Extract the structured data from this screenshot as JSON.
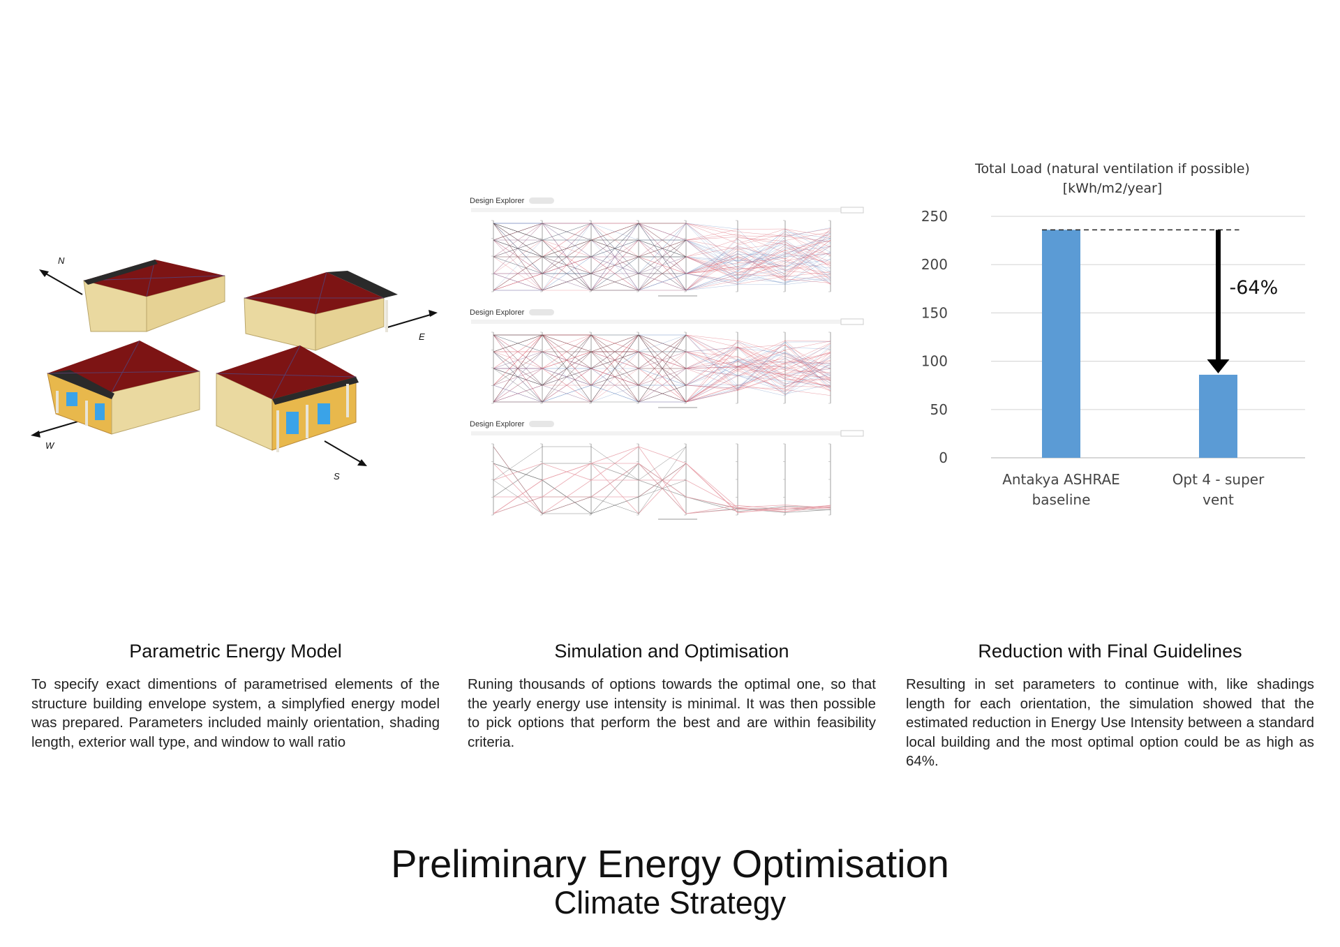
{
  "compass": {
    "north": "N",
    "east": "E",
    "west": "W",
    "south": "S"
  },
  "explorer": {
    "title": "Design Explorer"
  },
  "chart_data": {
    "type": "bar",
    "title": "Total Load (natural ventilation if possible)",
    "subtitle": "[kWh/m2/year]",
    "categories": [
      "Antakya ASHRAE baseline",
      "Opt 4 - super vent"
    ],
    "category_lines": [
      [
        "Antakya ASHRAE",
        "baseline"
      ],
      [
        "Opt 4 - super",
        "vent"
      ]
    ],
    "values": [
      236,
      86
    ],
    "ylim": [
      0,
      250
    ],
    "yticks": [
      "0",
      "50",
      "100",
      "150",
      "200",
      "250"
    ],
    "grid": true,
    "annotation": "-64%",
    "bar_color": "#5b9bd5"
  },
  "sections": [
    {
      "title": "Parametric Energy Model",
      "body": "To specify exact dimentions of parametrised elements of the structure building envelope system, a simplyfied energy model was prepared. Parameters included mainly orientation, shading length, exterior wall type, and window to wall ratio"
    },
    {
      "title": "Simulation and Optimisation",
      "body": "Runing thousands of options towards the optimal one, so that the yearly energy use intensity is minimal. It was then possible to pick options that perform the best and are within  feasibility criteria."
    },
    {
      "title": "Reduction with Final Guidelines",
      "body": "Resulting in set parameters to continue with, like shadings length for each orientation, the simulation showed that the estimated reduction in Energy Use Intensity between a standard local building and the most optimal option could be as high as 64%."
    }
  ],
  "footer": {
    "title": "Preliminary Energy Optimisation",
    "subtitle": "Climate Strategy"
  }
}
